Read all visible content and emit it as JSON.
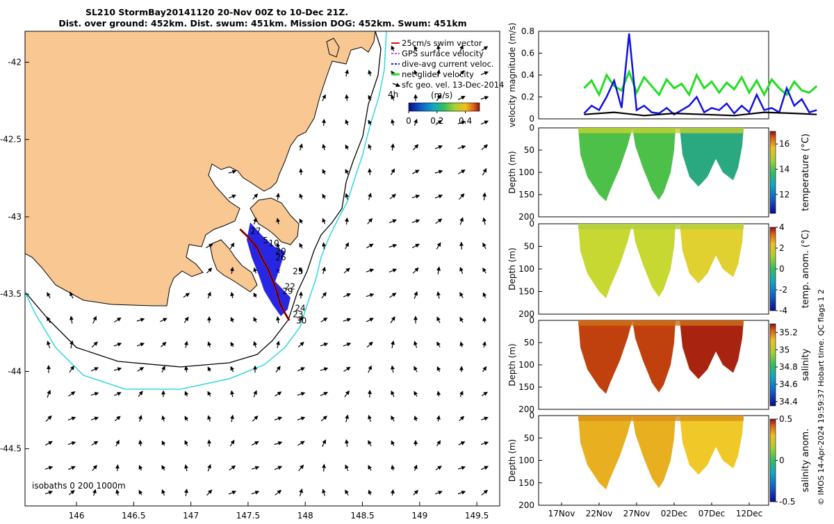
{
  "title": {
    "line1": "SL210 StormBay20141120 20-Nov 00Z to 10-Dec 21Z.",
    "line2": "Dist. over ground: 452km. Dist. swum: 451km. Mission DOG: 452km. Swum: 451km"
  },
  "footer": "© IMOS 14-Apr-2024 19:59:37 Hobart time. QC flags 1  2",
  "colors": {
    "land": "#F9C892",
    "coast": "#000000",
    "isobath_200": "#000000",
    "isobath_1000": "#33D6DC",
    "track": "#E01010",
    "dive_avg": "#1010E0",
    "net_vel": "#22DD22",
    "gps": "#CC44CC",
    "frame": "#000000"
  },
  "chart_data": [
    {
      "id": "map",
      "type": "scatter",
      "xlim": [
        145.55,
        149.7
      ],
      "ylim": [
        -44.87,
        -41.8
      ],
      "xticks": [
        146,
        146.5,
        147,
        147.5,
        148,
        148.5,
        149,
        149.5
      ],
      "yticks": [
        -42,
        -42.5,
        -43,
        -43.5,
        -44,
        -44.5
      ],
      "xticklabels": [
        "146",
        "146.5",
        "147",
        "147.5",
        "148",
        "148.5",
        "149",
        "149.5"
      ],
      "yticklabels": [
        "-42",
        "-42.5",
        "-43",
        "-43.5",
        "-44",
        "-44.5"
      ],
      "legend": {
        "position": "top-right",
        "entries": [
          "25cm/s swim vector",
          "GPS surface velocity",
          "dive-avg current veloc.",
          "net glider velocity",
          "sfc geo. vel. 13-Dec-2014"
        ],
        "time_label": "4h"
      },
      "colorbar": {
        "label": "(m/s)",
        "ticks": [
          0,
          0.2,
          0.4
        ],
        "ticklabels": [
          "0",
          "0.2",
          "0.4"
        ],
        "range": [
          0,
          0.5
        ]
      },
      "isobaths_label": "isobaths  0   200  1000m",
      "track": [
        [
          147.43,
          -43.08
        ],
        [
          147.5,
          -43.13
        ],
        [
          147.58,
          -43.2
        ],
        [
          147.63,
          -43.28
        ],
        [
          147.67,
          -43.33
        ],
        [
          147.72,
          -43.42
        ],
        [
          147.75,
          -43.48
        ],
        [
          147.78,
          -43.56
        ],
        [
          147.82,
          -43.62
        ],
        [
          147.86,
          -43.67
        ]
      ],
      "day_labels": [
        {
          "label": "27",
          "lon": 147.52,
          "lat": -43.11
        },
        {
          "label": "5",
          "lon": 147.63,
          "lat": -43.17
        },
        {
          "label": "10",
          "lon": 147.68,
          "lat": -43.19
        },
        {
          "label": "20",
          "lon": 147.74,
          "lat": -43.24
        },
        {
          "label": "26",
          "lon": 147.74,
          "lat": -43.28
        },
        {
          "label": "25",
          "lon": 147.89,
          "lat": -43.37
        },
        {
          "label": "22",
          "lon": 147.82,
          "lat": -43.47
        },
        {
          "label": "29",
          "lon": 147.8,
          "lat": -43.5
        },
        {
          "label": "24",
          "lon": 147.91,
          "lat": -43.61
        },
        {
          "label": "23",
          "lon": 147.89,
          "lat": -43.65
        },
        {
          "label": "30",
          "lon": 147.92,
          "lat": -43.69
        }
      ]
    },
    {
      "id": "velocity",
      "type": "line",
      "ylabel": "velocity magnitude (m/s)",
      "ylim": [
        0,
        0.8
      ],
      "yticks": [
        0,
        0.2,
        0.4,
        0.6,
        0.8
      ],
      "yticklabels": [
        "0",
        "0.2",
        "0.4",
        "0.6",
        "0.8"
      ],
      "x_days_since_14nov_range": [
        0.5,
        30
      ],
      "series": [
        {
          "name": "net glider velocity",
          "x": [
            6,
            7,
            8,
            9,
            10,
            11,
            12,
            13,
            14,
            15,
            16,
            17,
            18,
            19,
            20,
            21,
            22,
            23,
            24,
            25,
            26,
            27,
            28,
            29,
            30,
            31,
            32,
            33,
            34,
            35,
            36,
            37
          ],
          "values": [
            0.28,
            0.35,
            0.22,
            0.4,
            0.3,
            0.26,
            0.43,
            0.24,
            0.38,
            0.3,
            0.22,
            0.36,
            0.28,
            0.32,
            0.22,
            0.4,
            0.28,
            0.34,
            0.24,
            0.33,
            0.27,
            0.38,
            0.24,
            0.35,
            0.22,
            0.36,
            0.28,
            0.22,
            0.34,
            0.26,
            0.24,
            0.3
          ]
        },
        {
          "name": "dive-avg current veloc.",
          "x": [
            6,
            7,
            8,
            9,
            10,
            11,
            12,
            13,
            14,
            15,
            16,
            17,
            18,
            19,
            20,
            21,
            22,
            23,
            24,
            25,
            26,
            27,
            28,
            29,
            30,
            31,
            32,
            33,
            34,
            35,
            36,
            37
          ],
          "values": [
            0.05,
            0.12,
            0.08,
            0.2,
            0.35,
            0.1,
            0.78,
            0.08,
            0.12,
            0.06,
            0.05,
            0.1,
            0.04,
            0.08,
            0.12,
            0.2,
            0.06,
            0.1,
            0.08,
            0.14,
            0.05,
            0.12,
            0.06,
            0.22,
            0.08,
            0.1,
            0.06,
            0.28,
            0.12,
            0.18,
            0.06,
            0.08
          ]
        },
        {
          "name": "sfc geo. vel.",
          "x": [
            6,
            10,
            14,
            18,
            22,
            26,
            30,
            34,
            37
          ],
          "values": [
            0.04,
            0.06,
            0.03,
            0.05,
            0.04,
            0.03,
            0.06,
            0.05,
            0.04
          ]
        }
      ]
    },
    {
      "id": "temperature",
      "type": "heatmap",
      "ylabel": "Depth (m)",
      "ylim": [
        200,
        0
      ],
      "yticks": [
        0,
        50,
        100,
        150,
        200
      ],
      "yticklabels": [
        "0",
        "50",
        "100",
        "150",
        "200"
      ],
      "colorbar": {
        "label": "temperature (°C)",
        "ticks": [
          12,
          14,
          16
        ],
        "ticklabels": [
          "12",
          "14",
          "16"
        ],
        "range": [
          10.5,
          17
        ]
      },
      "typical_value": 13.5
    },
    {
      "id": "temp_anom",
      "type": "heatmap",
      "ylabel": "Depth (m)",
      "ylim": [
        200,
        0
      ],
      "yticks": [
        0,
        50,
        100,
        150,
        200
      ],
      "yticklabels": [
        "0",
        "50",
        "100",
        "150",
        "200"
      ],
      "colorbar": {
        "label": "temp. anom. (°C)",
        "ticks": [
          -4,
          -2,
          0,
          2,
          4
        ],
        "ticklabels": [
          "-4",
          "-2",
          "0",
          "2",
          "4"
        ],
        "range": [
          -4,
          4
        ]
      },
      "typical_value": 0.5
    },
    {
      "id": "salinity",
      "type": "heatmap",
      "ylabel": "Depth (m)",
      "ylim": [
        200,
        0
      ],
      "yticks": [
        0,
        50,
        100,
        150,
        200
      ],
      "yticklabels": [
        "0",
        "50",
        "100",
        "150",
        "200"
      ],
      "colorbar": {
        "label": "salinity",
        "ticks": [
          34.4,
          34.6,
          34.8,
          35,
          35.2
        ],
        "ticklabels": [
          "34.4",
          "34.6",
          "34.8",
          "35",
          "35.2"
        ],
        "range": [
          34.35,
          35.3
        ]
      },
      "typical_value": 35.15
    },
    {
      "id": "sal_anom",
      "type": "heatmap",
      "ylabel": "Depth (m)",
      "ylim": [
        200,
        0
      ],
      "yticks": [
        0,
        50,
        100,
        150,
        200
      ],
      "yticklabels": [
        "0",
        "50",
        "100",
        "150",
        "200"
      ],
      "colorbar": {
        "label": "salinity anom.",
        "ticks": [
          -0.5,
          0,
          0.5
        ],
        "ticklabels": [
          "-0.5",
          "0",
          "0.5"
        ],
        "range": [
          -0.5,
          0.5
        ]
      },
      "typical_value": 0.25,
      "x_dates": [
        "17Nov",
        "22Nov",
        "27Nov",
        "02Dec",
        "07Dec",
        "12Dec"
      ]
    }
  ]
}
